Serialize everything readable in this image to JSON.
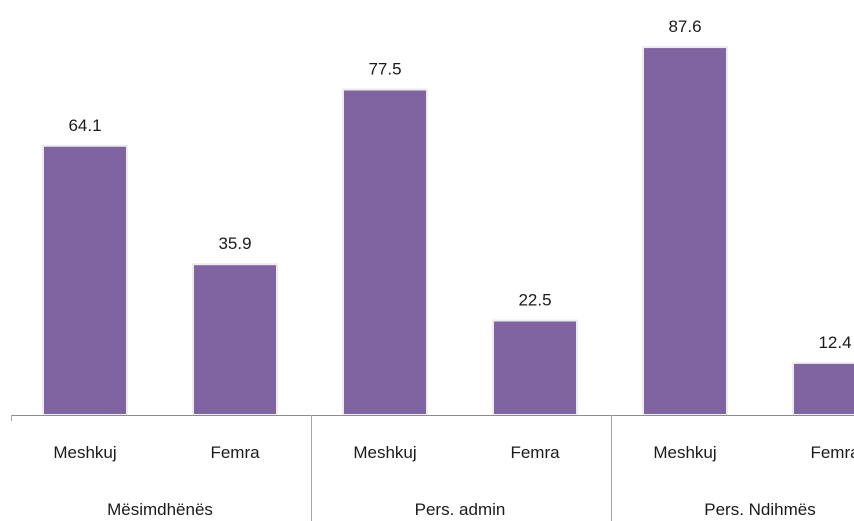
{
  "chart_data": {
    "type": "bar",
    "title": "",
    "xlabel": "",
    "ylabel": "",
    "ylim": [
      0,
      100
    ],
    "grid": false,
    "legend": "none",
    "bar_color": "#8064a2",
    "groups": [
      {
        "name": "Mësimdhënës",
        "categories": [
          "Meshkuj",
          "Femra"
        ],
        "values": [
          64.1,
          35.9
        ]
      },
      {
        "name": "Pers. admin",
        "categories": [
          "Meshkuj",
          "Femra"
        ],
        "values": [
          77.5,
          22.5
        ]
      },
      {
        "name": "Pers. Ndihmës",
        "categories": [
          "Meshkuj",
          "Femra"
        ],
        "values": [
          87.6,
          12.4
        ]
      }
    ]
  }
}
